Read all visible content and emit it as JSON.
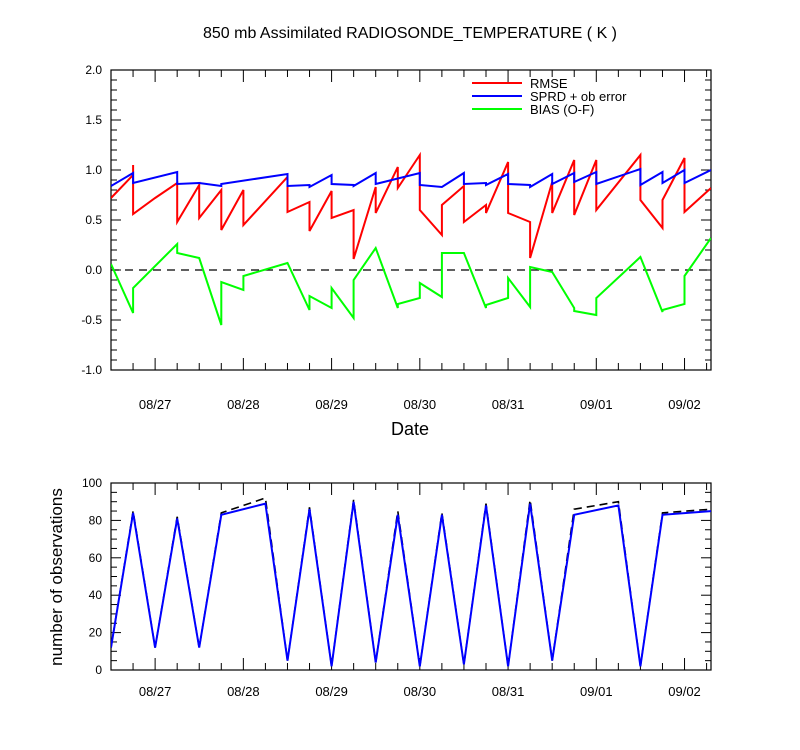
{
  "chart_data": [
    {
      "type": "line",
      "title": "850 mb Assimilated RADIOSONDE_TEMPERATURE ( K )",
      "xlabel": "Date",
      "ylabel": "",
      "ylim": [
        -1.0,
        2.0
      ],
      "xlim_days": [
        26.5,
        33.3
      ],
      "x_ticks": [
        {
          "x": 27,
          "label": "08/27"
        },
        {
          "x": 28,
          "label": "08/28"
        },
        {
          "x": 29,
          "label": "08/29"
        },
        {
          "x": 30,
          "label": "08/30"
        },
        {
          "x": 31,
          "label": "08/31"
        },
        {
          "x": 32,
          "label": "09/01"
        },
        {
          "x": 33,
          "label": "09/02"
        }
      ],
      "y_ticks": [
        {
          "y": 2.0,
          "label": "2.0"
        },
        {
          "y": 1.5,
          "label": "1.5"
        },
        {
          "y": 1.0,
          "label": "1.0"
        },
        {
          "y": 0.5,
          "label": "0.5"
        },
        {
          "y": 0.0,
          "label": "0.0"
        },
        {
          "y": -0.5,
          "label": "-0.5"
        },
        {
          "y": -1.0,
          "label": "-1.0"
        }
      ],
      "zero_line": true,
      "legend_position": "top-right",
      "series": [
        {
          "name": "RMSE",
          "color": "#ff0000",
          "segments": [
            [
              [
                26.5,
                0.72
              ],
              [
                26.75,
                0.95
              ],
              [
                26.75,
                0.95
              ],
              [
                26.75,
                1.05
              ],
              [
                26.75,
                0.56
              ],
              [
                27.0,
                0.72
              ],
              [
                27.25,
                0.87
              ],
              [
                27.25,
                0.48
              ],
              [
                27.5,
                0.85
              ],
              [
                27.5,
                0.52
              ],
              [
                27.75,
                0.8
              ],
              [
                27.75,
                0.4
              ],
              [
                28.0,
                0.8
              ],
              [
                28.0,
                0.45
              ],
              [
                28.5,
                0.93
              ],
              [
                28.5,
                0.58
              ],
              [
                28.75,
                0.68
              ],
              [
                28.75,
                0.39
              ],
              [
                29.0,
                0.79
              ],
              [
                29.0,
                0.52
              ],
              [
                29.25,
                0.6
              ],
              [
                29.25,
                0.11
              ],
              [
                29.5,
                0.83
              ],
              [
                29.5,
                0.57
              ],
              [
                29.75,
                1.03
              ],
              [
                29.75,
                0.82
              ],
              [
                30.0,
                1.15
              ],
              [
                30.0,
                0.6
              ],
              [
                30.25,
                0.35
              ],
              [
                30.25,
                0.65
              ],
              [
                30.5,
                0.84
              ],
              [
                30.5,
                0.48
              ],
              [
                30.75,
                0.65
              ],
              [
                30.75,
                0.57
              ],
              [
                31.0,
                1.08
              ],
              [
                31.0,
                0.57
              ],
              [
                31.25,
                0.48
              ],
              [
                31.25,
                0.12
              ],
              [
                31.5,
                0.88
              ],
              [
                31.5,
                0.57
              ],
              [
                31.75,
                1.1
              ],
              [
                31.75,
                0.55
              ],
              [
                32.0,
                1.1
              ],
              [
                32.0,
                0.6
              ],
              [
                32.5,
                1.15
              ],
              [
                32.5,
                0.7
              ],
              [
                32.75,
                0.42
              ],
              [
                32.75,
                0.7
              ],
              [
                33.0,
                1.12
              ],
              [
                33.0,
                0.58
              ],
              [
                33.3,
                0.82
              ]
            ]
          ]
        },
        {
          "name": "SPRD + ob error",
          "color": "#0000ff",
          "segments": [
            [
              [
                26.5,
                0.84
              ],
              [
                26.75,
                0.97
              ],
              [
                26.75,
                0.87
              ],
              [
                27.25,
                0.98
              ],
              [
                27.25,
                0.86
              ],
              [
                27.5,
                0.87
              ],
              [
                27.75,
                0.84
              ],
              [
                27.75,
                0.86
              ],
              [
                28.5,
                0.96
              ],
              [
                28.5,
                0.84
              ],
              [
                28.75,
                0.85
              ],
              [
                28.75,
                0.83
              ],
              [
                29.0,
                0.95
              ],
              [
                29.0,
                0.86
              ],
              [
                29.25,
                0.85
              ],
              [
                29.25,
                0.84
              ],
              [
                29.5,
                0.97
              ],
              [
                29.5,
                0.86
              ],
              [
                30.0,
                0.97
              ],
              [
                30.0,
                0.85
              ],
              [
                30.25,
                0.83
              ],
              [
                30.5,
                0.97
              ],
              [
                30.5,
                0.86
              ],
              [
                30.75,
                0.87
              ],
              [
                30.75,
                0.85
              ],
              [
                31.0,
                0.96
              ],
              [
                31.0,
                0.86
              ],
              [
                31.25,
                0.85
              ],
              [
                31.25,
                0.83
              ],
              [
                31.5,
                0.96
              ],
              [
                31.5,
                0.86
              ],
              [
                31.75,
                0.97
              ],
              [
                31.75,
                0.88
              ],
              [
                32.0,
                0.98
              ],
              [
                32.0,
                0.86
              ],
              [
                32.5,
                1.01
              ],
              [
                32.5,
                0.85
              ],
              [
                32.75,
                0.98
              ],
              [
                32.75,
                0.87
              ],
              [
                33.0,
                1.0
              ],
              [
                33.0,
                0.87
              ],
              [
                33.3,
                1.0
              ]
            ]
          ]
        },
        {
          "name": "BIAS (O-F)",
          "color": "#00ff00",
          "segments": [
            [
              [
                26.5,
                0.06
              ],
              [
                26.75,
                -0.43
              ],
              [
                26.75,
                -0.18
              ],
              [
                27.25,
                0.26
              ],
              [
                27.25,
                0.17
              ],
              [
                27.5,
                0.12
              ],
              [
                27.75,
                -0.55
              ],
              [
                27.75,
                -0.12
              ],
              [
                28.0,
                -0.2
              ],
              [
                28.0,
                -0.06
              ],
              [
                28.5,
                0.07
              ],
              [
                28.75,
                -0.4
              ],
              [
                28.75,
                -0.26
              ],
              [
                29.0,
                -0.38
              ],
              [
                29.0,
                -0.18
              ],
              [
                29.25,
                -0.48
              ],
              [
                29.25,
                -0.1
              ],
              [
                29.5,
                0.22
              ],
              [
                29.75,
                -0.38
              ],
              [
                29.75,
                -0.34
              ],
              [
                30.0,
                -0.28
              ],
              [
                30.0,
                -0.13
              ],
              [
                30.25,
                -0.27
              ],
              [
                30.25,
                0.17
              ],
              [
                30.5,
                0.17
              ],
              [
                30.75,
                -0.38
              ],
              [
                30.75,
                -0.35
              ],
              [
                31.0,
                -0.28
              ],
              [
                31.0,
                -0.08
              ],
              [
                31.25,
                -0.37
              ],
              [
                31.25,
                0.03
              ],
              [
                31.5,
                -0.02
              ],
              [
                31.75,
                -0.38
              ],
              [
                31.75,
                -0.41
              ],
              [
                32.0,
                -0.45
              ],
              [
                32.0,
                -0.28
              ],
              [
                32.5,
                0.13
              ],
              [
                32.75,
                -0.42
              ],
              [
                32.75,
                -0.4
              ],
              [
                33.0,
                -0.34
              ],
              [
                33.0,
                -0.06
              ],
              [
                33.3,
                0.32
              ]
            ]
          ]
        }
      ]
    },
    {
      "type": "line",
      "title": "",
      "xlabel": "",
      "ylabel": "number of observations",
      "ylim": [
        0,
        100
      ],
      "xlim_days": [
        26.5,
        33.3
      ],
      "x_ticks": [
        {
          "x": 27,
          "label": "08/27"
        },
        {
          "x": 28,
          "label": "08/28"
        },
        {
          "x": 29,
          "label": "08/29"
        },
        {
          "x": 30,
          "label": "08/30"
        },
        {
          "x": 31,
          "label": "08/31"
        },
        {
          "x": 32,
          "label": "09/01"
        },
        {
          "x": 33,
          "label": "09/02"
        }
      ],
      "y_ticks": [
        {
          "y": 0,
          "label": "0"
        },
        {
          "y": 20,
          "label": "20"
        },
        {
          "y": 40,
          "label": "40"
        },
        {
          "y": 60,
          "label": "60"
        },
        {
          "y": 80,
          "label": "80"
        },
        {
          "y": 100,
          "label": "100"
        }
      ],
      "series": [
        {
          "name": "",
          "style": "dashed",
          "color": "#000000",
          "segments": [
            [
              [
                26.5,
                12
              ],
              [
                26.75,
                85
              ],
              [
                27.0,
                12
              ],
              [
                27.25,
                82
              ],
              [
                27.5,
                12
              ],
              [
                27.75,
                84
              ],
              [
                28.25,
                92
              ],
              [
                28.5,
                5
              ],
              [
                28.75,
                87
              ],
              [
                29.0,
                2
              ],
              [
                29.25,
                91
              ],
              [
                29.5,
                4
              ],
              [
                29.75,
                85
              ],
              [
                30.0,
                2
              ],
              [
                30.25,
                84
              ],
              [
                30.5,
                3
              ],
              [
                30.75,
                89
              ],
              [
                31.0,
                2
              ],
              [
                31.25,
                91
              ],
              [
                31.5,
                5
              ],
              [
                31.75,
                86
              ],
              [
                32.25,
                90
              ],
              [
                32.5,
                2
              ],
              [
                32.75,
                84
              ],
              [
                33.3,
                86
              ]
            ]
          ]
        },
        {
          "name": "",
          "style": "solid",
          "color": "#0000ff",
          "segments": [
            [
              [
                26.5,
                12
              ],
              [
                26.75,
                84
              ],
              [
                27.0,
                12
              ],
              [
                27.25,
                81
              ],
              [
                27.5,
                12
              ],
              [
                27.75,
                83
              ],
              [
                28.25,
                89
              ],
              [
                28.5,
                5
              ],
              [
                28.75,
                86
              ],
              [
                29.0,
                2
              ],
              [
                29.25,
                90
              ],
              [
                29.5,
                4
              ],
              [
                29.75,
                83
              ],
              [
                30.0,
                2
              ],
              [
                30.25,
                83
              ],
              [
                30.5,
                3
              ],
              [
                30.75,
                88
              ],
              [
                31.0,
                2
              ],
              [
                31.25,
                89
              ],
              [
                31.5,
                5
              ],
              [
                31.75,
                83
              ],
              [
                32.25,
                88
              ],
              [
                32.5,
                2
              ],
              [
                32.75,
                83
              ],
              [
                33.3,
                85
              ]
            ]
          ]
        }
      ]
    }
  ]
}
